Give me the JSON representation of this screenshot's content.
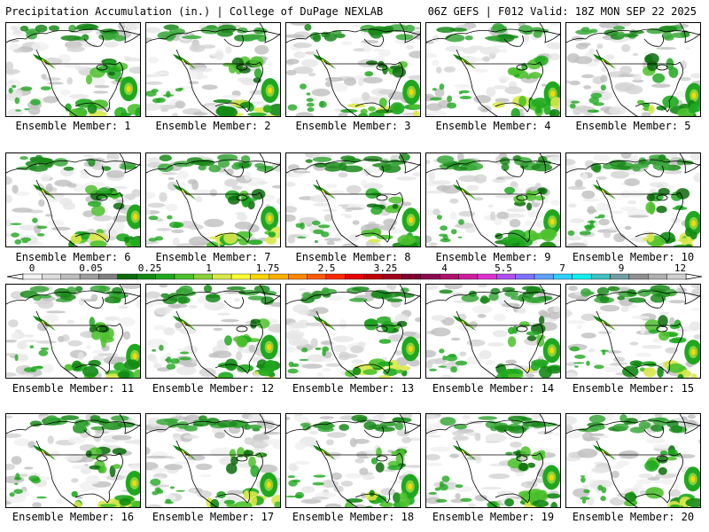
{
  "header": {
    "title_left": "Precipitation Accumulation (in.) | College of DuPage NEXLAB",
    "title_right": "06Z GEFS | F012 Valid: 18Z MON SEP 22 2025"
  },
  "members": [
    "Ensemble Member: 1",
    "Ensemble Member: 2",
    "Ensemble Member: 3",
    "Ensemble Member: 4",
    "Ensemble Member: 5",
    "Ensemble Member: 6",
    "Ensemble Member: 7",
    "Ensemble Member: 8",
    "Ensemble Member: 9",
    "Ensemble Member: 10",
    "Ensemble Member: 11",
    "Ensemble Member: 12",
    "Ensemble Member: 13",
    "Ensemble Member: 14",
    "Ensemble Member: 15",
    "Ensemble Member: 16",
    "Ensemble Member: 17",
    "Ensemble Member: 18",
    "Ensemble Member: 19",
    "Ensemble Member: 20"
  ],
  "colorbar": {
    "tick_labels": [
      "0",
      "0.05",
      "0.25",
      "1",
      "1.75",
      "2.5",
      "3.25",
      "4",
      "5.5",
      "7",
      "9",
      "12"
    ],
    "colors": [
      "#f2f2f2",
      "#dcdcdc",
      "#bdbdbd",
      "#9e9e9e",
      "#7f7f7f",
      "#0b6b0b",
      "#138a13",
      "#1fa81f",
      "#4cc12c",
      "#8ad13a",
      "#d8e84a",
      "#ffff33",
      "#ffd700",
      "#ffb000",
      "#ff8800",
      "#ff5a00",
      "#ff2a00",
      "#e60000",
      "#c00000",
      "#a00020",
      "#800030",
      "#8b0a50",
      "#b0106a",
      "#d01ca0",
      "#e030d0",
      "#b050f0",
      "#8070ff",
      "#60a0ff",
      "#30d0ff",
      "#10f0f0",
      "#40c0c0",
      "#70a0a0",
      "#909090",
      "#b0b0b0",
      "#d0d0d0"
    ]
  }
}
